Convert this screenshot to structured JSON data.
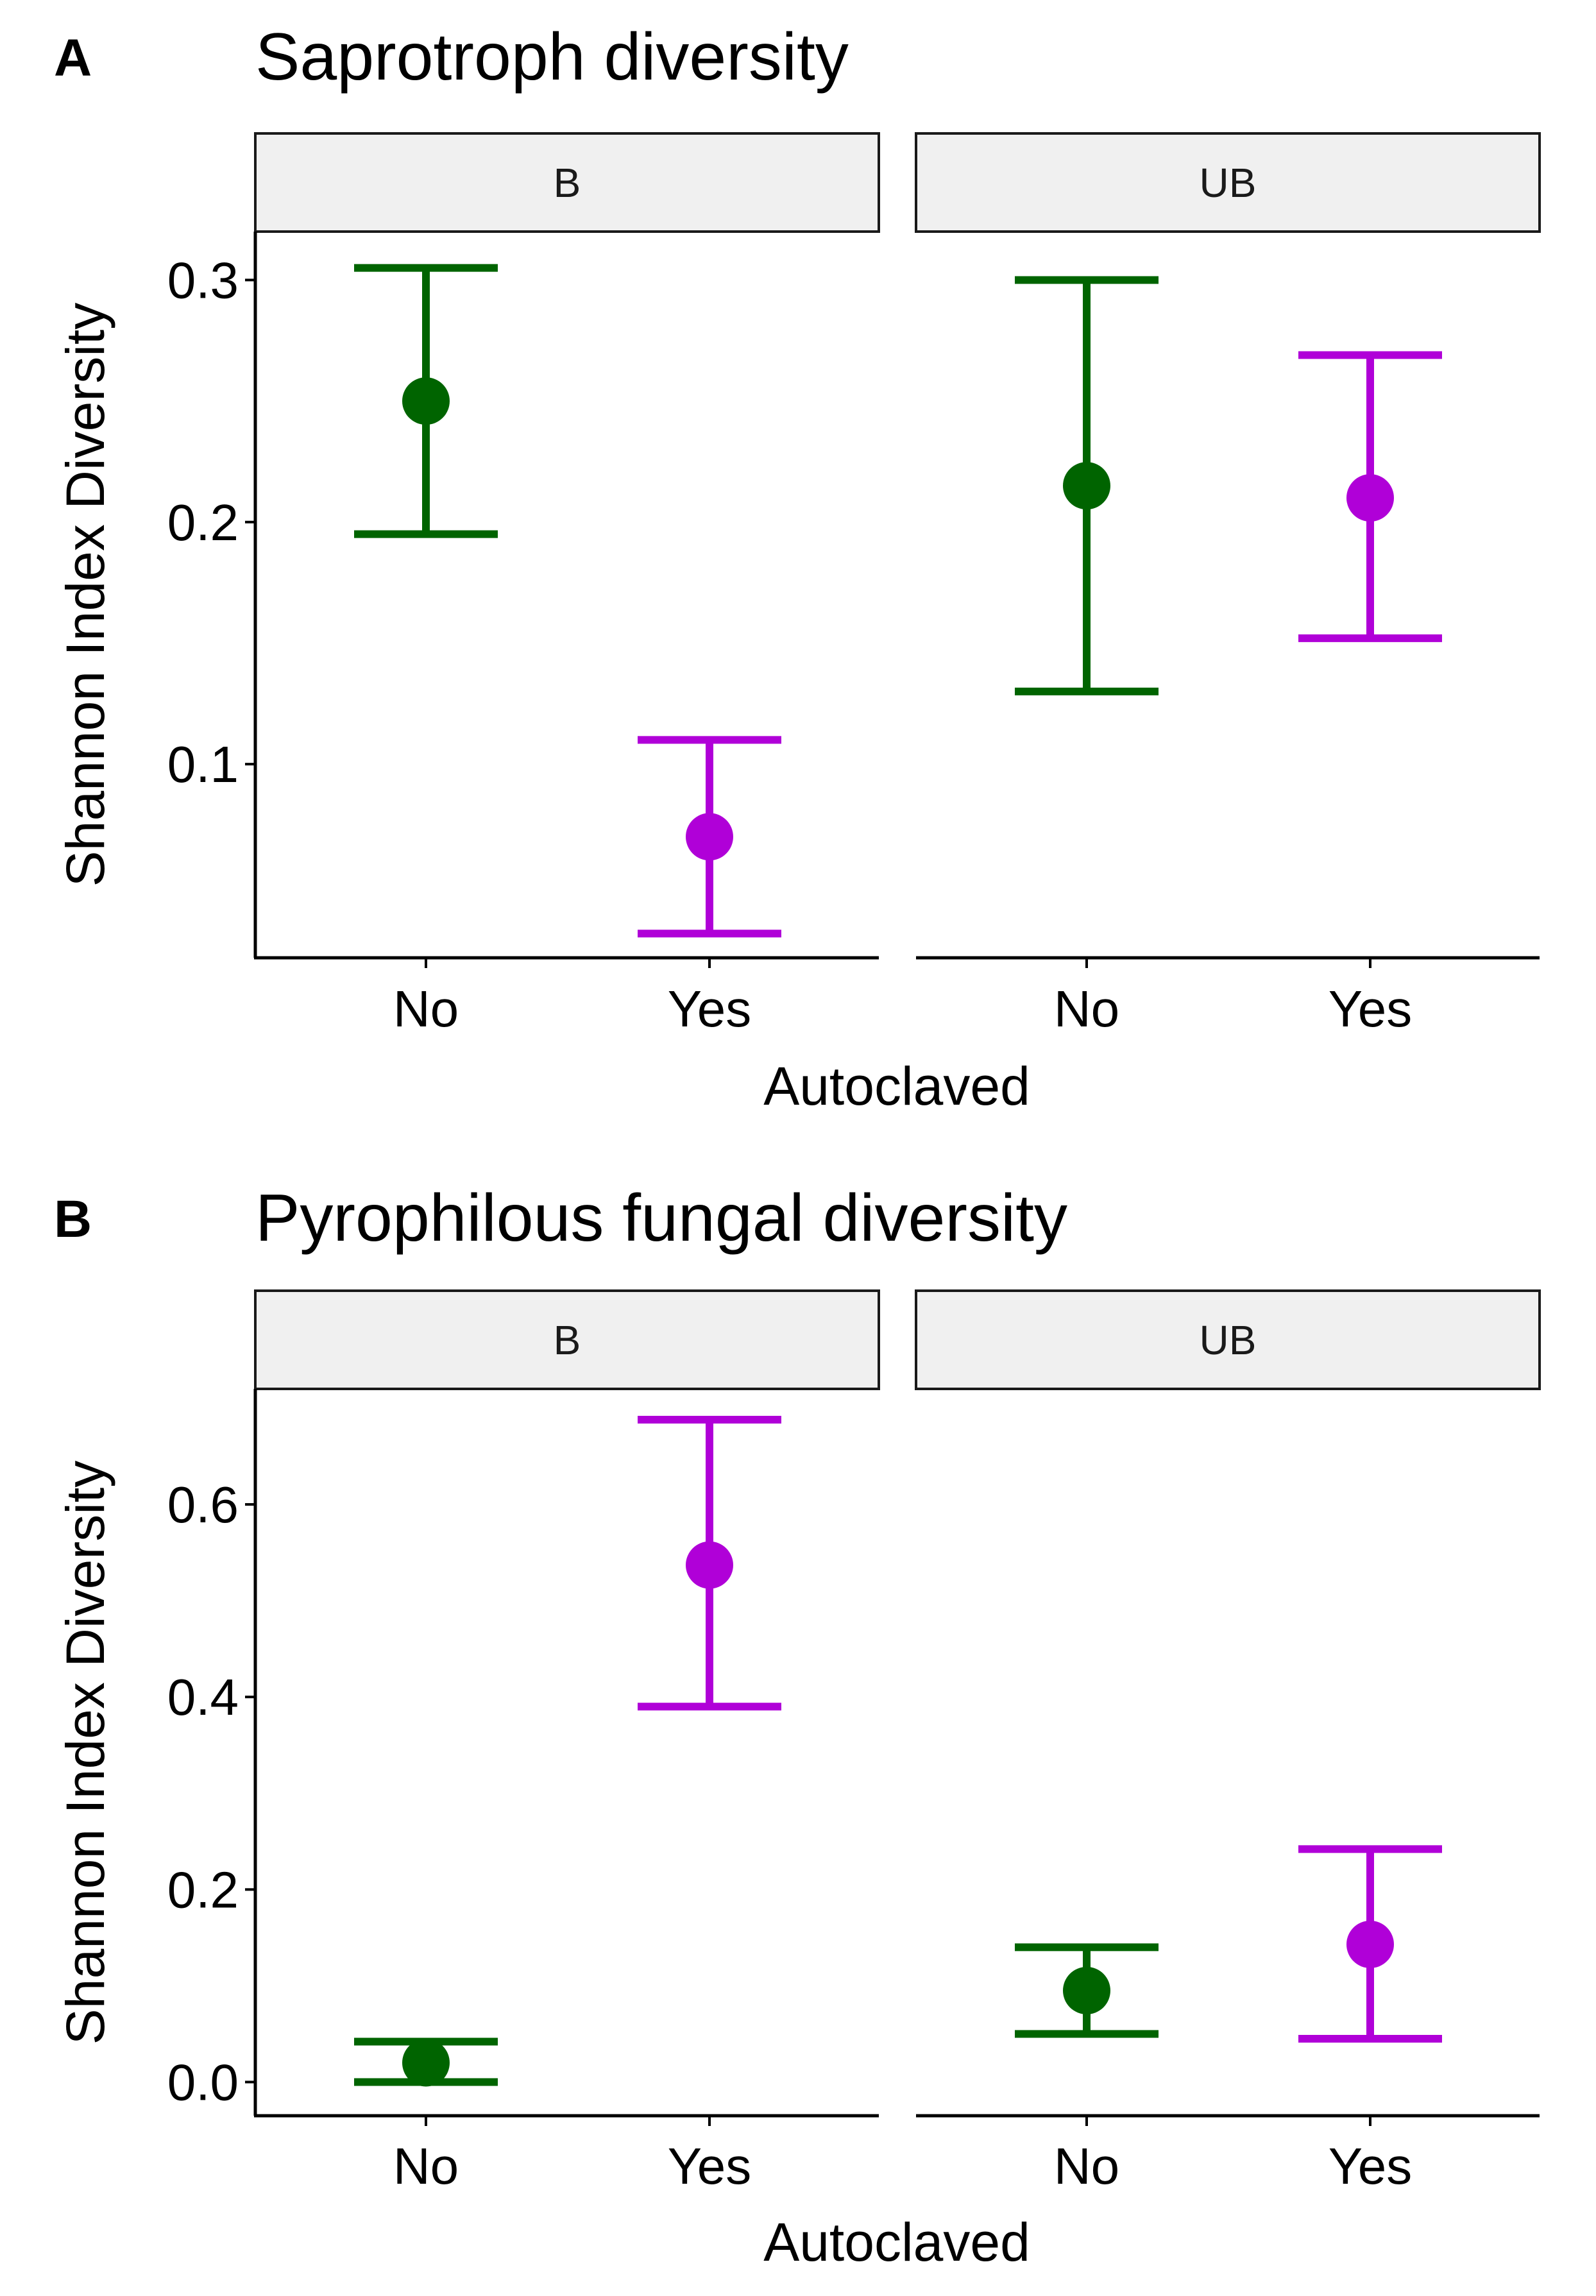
{
  "figure": {
    "colors": {
      "No": "#006400",
      "Yes": "#B000D8"
    },
    "xlabel": "Autoclaved",
    "ylabel": "Shannon Index Diversity"
  },
  "chart_data": [
    {
      "type": "errorbar",
      "panel": "A",
      "title": "Saprotroph diversity",
      "xlabel": "Autoclaved",
      "ylabel": "Shannon Index Diversity",
      "categories": [
        "No",
        "Yes"
      ],
      "ylim": [
        0.02,
        0.32
      ],
      "yticks": [
        0.1,
        0.2,
        0.3
      ],
      "ytick_labels": [
        "0.1",
        "0.2",
        "0.3"
      ],
      "facets": [
        {
          "label": "B",
          "points": [
            {
              "x": "No",
              "mean": 0.25,
              "lower": 0.195,
              "upper": 0.305
            },
            {
              "x": "Yes",
              "mean": 0.07,
              "lower": 0.03,
              "upper": 0.11
            }
          ]
        },
        {
          "label": "UB",
          "points": [
            {
              "x": "No",
              "mean": 0.215,
              "lower": 0.13,
              "upper": 0.3
            },
            {
              "x": "Yes",
              "mean": 0.21,
              "lower": 0.152,
              "upper": 0.269
            }
          ]
        }
      ]
    },
    {
      "type": "errorbar",
      "panel": "B",
      "title": "Pyrophilous fungal diversity",
      "xlabel": "Autoclaved",
      "ylabel": "Shannon Index Diversity",
      "categories": [
        "No",
        "Yes"
      ],
      "ylim": [
        -0.035,
        0.72
      ],
      "yticks": [
        0.0,
        0.2,
        0.4,
        0.6
      ],
      "ytick_labels": [
        "0.0",
        "0.2",
        "0.4",
        "0.6"
      ],
      "facets": [
        {
          "label": "B",
          "points": [
            {
              "x": "No",
              "mean": 0.02,
              "lower": 0.0,
              "upper": 0.042
            },
            {
              "x": "Yes",
              "mean": 0.537,
              "lower": 0.39,
              "upper": 0.688
            }
          ]
        },
        {
          "label": "UB",
          "points": [
            {
              "x": "No",
              "mean": 0.095,
              "lower": 0.05,
              "upper": 0.14
            },
            {
              "x": "Yes",
              "mean": 0.143,
              "lower": 0.045,
              "upper": 0.242
            }
          ]
        }
      ]
    }
  ]
}
